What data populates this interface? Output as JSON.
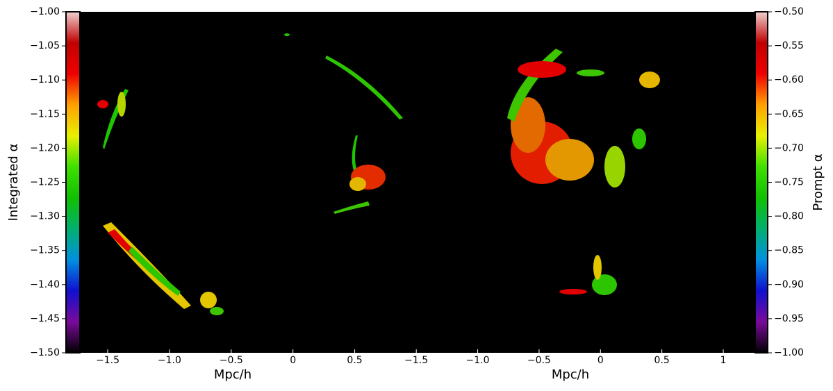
{
  "chart_data": {
    "type": "image",
    "panels": [
      {
        "xlabel": "Mpc/h",
        "xlim": [
          -1.725,
          0.75
        ],
        "xticks": [
          {
            "value": -1.5,
            "label": "−1.5"
          },
          {
            "value": -1.0,
            "label": "−1.0"
          },
          {
            "value": -0.5,
            "label": "−0.5"
          },
          0.0,
          0.5
        ]
      },
      {
        "xlabel": "Mpc/h",
        "xlim": [
          -1.75,
          1.26
        ],
        "xticks": [
          {
            "value": -1.5,
            "label": "−1.5"
          },
          {
            "value": -1.0,
            "label": "−1.0"
          },
          {
            "value": -0.5,
            "label": "−0.5"
          },
          0.0,
          0.5,
          1.0
        ]
      }
    ],
    "colorbars": [
      {
        "label": "Integrated α",
        "side": "left",
        "lim": [
          -1.5,
          -1.0
        ],
        "ticks": [
          {
            "value": -1.5,
            "label": "−1.50"
          },
          {
            "value": -1.45,
            "label": "−1.45"
          },
          {
            "value": -1.4,
            "label": "−1.40"
          },
          {
            "value": -1.35,
            "label": "−1.35"
          },
          {
            "value": -1.3,
            "label": "−1.30"
          },
          {
            "value": -1.25,
            "label": "−1.25"
          },
          {
            "value": -1.2,
            "label": "−1.20"
          },
          {
            "value": -1.15,
            "label": "−1.15"
          },
          {
            "value": -1.1,
            "label": "−1.10"
          },
          {
            "value": -1.05,
            "label": "−1.05"
          },
          {
            "value": -1.0,
            "label": "−1.00"
          }
        ]
      },
      {
        "label": "Prompt α",
        "side": "right",
        "lim": [
          -1.0,
          -0.5
        ],
        "ticks": [
          {
            "value": -1.0,
            "label": "−1.00"
          },
          {
            "value": -0.95,
            "label": "−0.95"
          },
          {
            "value": -0.9,
            "label": "−0.90"
          },
          {
            "value": -0.85,
            "label": "−0.85"
          },
          {
            "value": -0.8,
            "label": "−0.80"
          },
          {
            "value": -0.75,
            "label": "−0.75"
          },
          {
            "value": -0.7,
            "label": "−0.70"
          },
          {
            "value": -0.65,
            "label": "−0.65"
          },
          {
            "value": -0.6,
            "label": "−0.60"
          },
          {
            "value": -0.55,
            "label": "−0.55"
          },
          {
            "value": -0.5,
            "label": "−0.50"
          }
        ]
      }
    ],
    "colormap": [
      "#000000",
      "#7a0a9a",
      "#1010d0",
      "#0090e0",
      "#00b070",
      "#10c000",
      "#40e000",
      "#e8f000",
      "#ffa000",
      "#f00000",
      "#c00000",
      "#f0d0d0"
    ]
  }
}
